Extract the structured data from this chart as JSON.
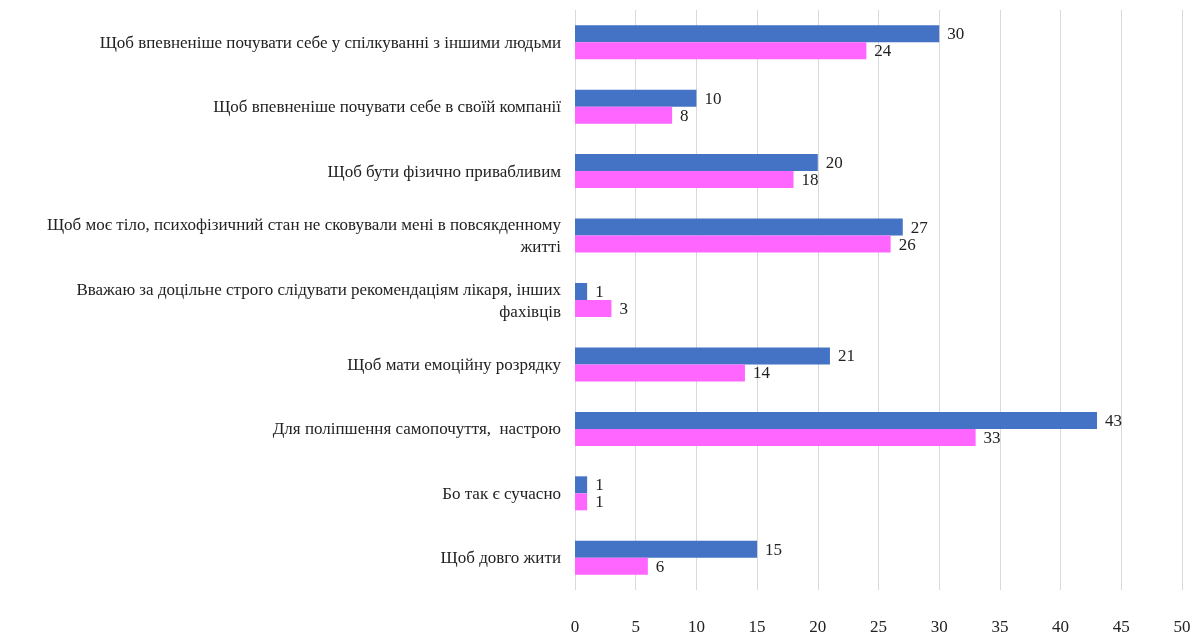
{
  "chart_data": {
    "type": "bar",
    "orientation": "horizontal",
    "categories": [
      "Щоб впевненіше почувати себе у спілкуванні з іншими людьми",
      "Щоб впевненіше почувати себе в своїй компанії",
      "Щоб бути фізично привабливим",
      "Щоб моє тіло, психофізичний стан не сковували мені в повсякденному житті",
      "Вважаю за доцільне строго слідувати рекомендаціям лікаря, інших фахівців",
      "Щоб мати емоційну розрядку",
      "Для поліпшення самопочуття,  настрою",
      "Бо так є сучасно",
      "Щоб довго жити"
    ],
    "series": [
      {
        "color": "#4472c4",
        "values": [
          30,
          10,
          20,
          27,
          1,
          21,
          43,
          1,
          15
        ]
      },
      {
        "color": "#ff66ff",
        "values": [
          24,
          8,
          18,
          26,
          3,
          14,
          33,
          1,
          6
        ]
      }
    ],
    "xlim": [
      0,
      50
    ],
    "xticks": [
      0,
      5,
      10,
      15,
      20,
      25,
      30,
      35,
      40,
      45,
      50
    ],
    "grid": "x",
    "data_labels": true
  }
}
